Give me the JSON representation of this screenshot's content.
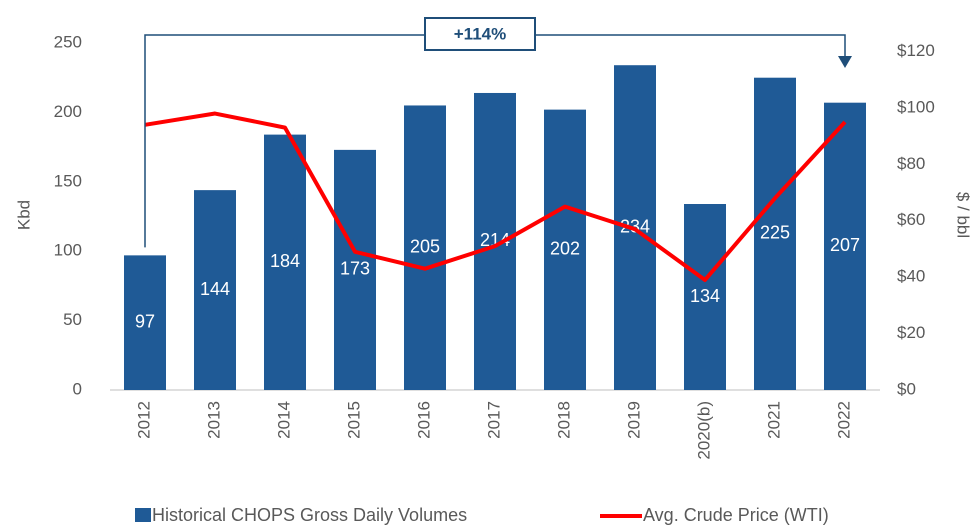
{
  "chart_data": {
    "type": "bar_line",
    "categories": [
      "2012",
      "2013",
      "2014",
      "2015",
      "2016",
      "2017",
      "2018",
      "2019",
      "2020(b)",
      "2021",
      "2022"
    ],
    "series": [
      {
        "name": "Historical CHOPS Gross Daily Volumes",
        "color": "#1f5a96",
        "values": [
          97,
          144,
          184,
          173,
          205,
          214,
          202,
          234,
          134,
          225,
          207
        ]
      },
      {
        "name": "Avg. Crude Price (WTI)",
        "color": "#ff0000",
        "axis": "y2",
        "values": [
          94,
          98,
          93,
          49,
          43,
          51,
          65,
          57,
          39,
          68,
          95
        ]
      }
    ],
    "ylabel": "Kbd",
    "y2label": "$ / bbl",
    "ylim": [
      0,
      250
    ],
    "yticks": [
      0,
      50,
      100,
      150,
      200,
      250
    ],
    "y2lim": [
      0,
      123
    ],
    "y2ticks": [
      {
        "value": 0,
        "label": "$0"
      },
      {
        "value": 20,
        "label": "$20"
      },
      {
        "value": 40,
        "label": "$40"
      },
      {
        "value": 60,
        "label": "$60"
      },
      {
        "value": 80,
        "label": "$80"
      },
      {
        "value": 100,
        "label": "$100"
      },
      {
        "value": 120,
        "label": "$120"
      }
    ],
    "annotation": "+114%"
  }
}
